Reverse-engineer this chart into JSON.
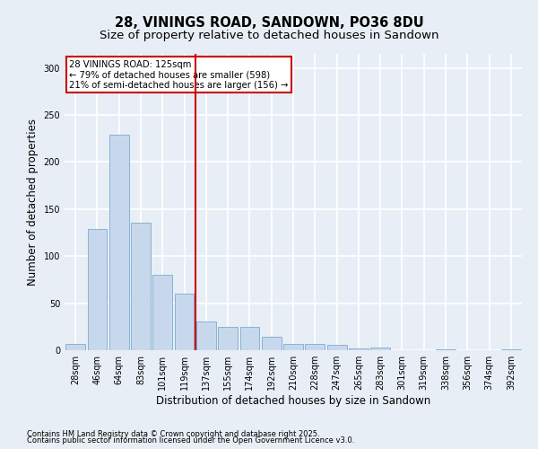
{
  "title": "28, VININGS ROAD, SANDOWN, PO36 8DU",
  "subtitle": "Size of property relative to detached houses in Sandown",
  "xlabel": "Distribution of detached houses by size in Sandown",
  "ylabel": "Number of detached properties",
  "footnote1": "Contains HM Land Registry data © Crown copyright and database right 2025.",
  "footnote2": "Contains public sector information licensed under the Open Government Licence v3.0.",
  "bar_labels": [
    "28sqm",
    "46sqm",
    "64sqm",
    "83sqm",
    "101sqm",
    "119sqm",
    "137sqm",
    "155sqm",
    "174sqm",
    "192sqm",
    "210sqm",
    "228sqm",
    "247sqm",
    "265sqm",
    "283sqm",
    "301sqm",
    "319sqm",
    "338sqm",
    "356sqm",
    "374sqm",
    "392sqm"
  ],
  "bar_values": [
    7,
    129,
    229,
    136,
    80,
    60,
    31,
    25,
    25,
    14,
    7,
    7,
    6,
    2,
    3,
    0,
    0,
    1,
    0,
    0,
    1
  ],
  "bar_color": "#c8d8ec",
  "bar_edge_color": "#7aaad0",
  "vline_x": 5.5,
  "vline_color": "#cc0000",
  "annotation_text": "28 VININGS ROAD: 125sqm\n← 79% of detached houses are smaller (598)\n21% of semi-detached houses are larger (156) →",
  "annotation_box_facecolor": "#ffffff",
  "annotation_box_edgecolor": "#cc0000",
  "ylim": [
    0,
    315
  ],
  "yticks": [
    0,
    50,
    100,
    150,
    200,
    250,
    300
  ],
  "background_color": "#e8eef5",
  "plot_bg_color": "#e8eef5",
  "grid_color": "#ffffff",
  "title_fontsize": 10.5,
  "subtitle_fontsize": 9.5,
  "tick_fontsize": 7,
  "label_fontsize": 8.5,
  "footnote_fontsize": 6
}
